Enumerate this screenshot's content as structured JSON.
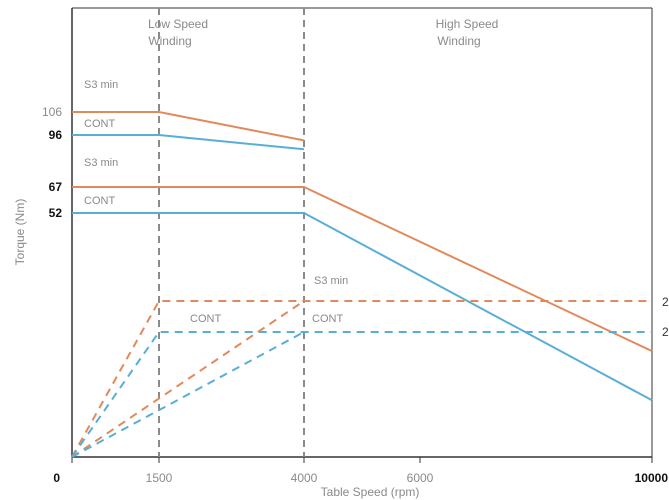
{
  "chart_data": {
    "type": "line",
    "xlabel": "Table Speed (rpm)",
    "ylabel": "Torque (Nm)",
    "xlim": [
      0,
      10000
    ],
    "x_ticks": [
      {
        "value": 0,
        "label": "0"
      },
      {
        "value": 1500,
        "label": "1500"
      },
      {
        "value": 4000,
        "label": "4000"
      },
      {
        "value": 6000,
        "label": "6000"
      },
      {
        "value": 10000,
        "label": "10000"
      }
    ],
    "y_ticks": [
      {
        "value": 106,
        "label": "106"
      },
      {
        "value": 96,
        "label": "96"
      },
      {
        "value": 67,
        "label": "67"
      },
      {
        "value": 52,
        "label": "52"
      }
    ],
    "right_tick_labels": [
      "2",
      "2"
    ],
    "region_labels": [
      {
        "lines": [
          "Low Speed",
          "Winding"
        ]
      },
      {
        "lines": [
          "High Speed",
          "Winding"
        ]
      }
    ],
    "grid": false,
    "colors": {
      "s3": "#e08a5c",
      "cont": "#5aaed6",
      "divider": "#8a8a8a",
      "axis": "#333333"
    },
    "series": [
      {
        "style": "s3",
        "dash": false,
        "points": [
          [
            0,
            106
          ],
          [
            1500,
            106
          ],
          [
            4000,
            93
          ]
        ],
        "label": "S3 min"
      },
      {
        "style": "cont",
        "dash": false,
        "points": [
          [
            0,
            96
          ],
          [
            1500,
            96
          ],
          [
            4000,
            88
          ]
        ],
        "label": "CONT"
      },
      {
        "style": "s3",
        "dash": false,
        "points": [
          [
            0,
            67
          ],
          [
            4000,
            67
          ],
          [
            10000,
            12
          ]
        ],
        "label": "S3 min"
      },
      {
        "style": "cont",
        "dash": false,
        "points": [
          [
            0,
            52
          ],
          [
            4000,
            52
          ],
          [
            10000,
            -3
          ]
        ],
        "label": "CONT"
      },
      {
        "style": "s3",
        "dash": true,
        "points": [
          [
            0,
            -55
          ],
          [
            1500,
            30
          ],
          [
            10000,
            30
          ]
        ],
        "label": "S3 min"
      },
      {
        "style": "cont",
        "dash": true,
        "points": [
          [
            0,
            -55
          ],
          [
            1500,
            17
          ],
          [
            10000,
            17
          ]
        ],
        "label": "CONT"
      },
      {
        "style": "s3",
        "dash": true,
        "points": [
          [
            0,
            -55
          ],
          [
            4000,
            30
          ]
        ],
        "label": ""
      },
      {
        "style": "cont",
        "dash": true,
        "points": [
          [
            0,
            -55
          ],
          [
            4000,
            17
          ]
        ],
        "label": "CONT"
      }
    ],
    "verticals": [
      1500,
      4000
    ]
  }
}
